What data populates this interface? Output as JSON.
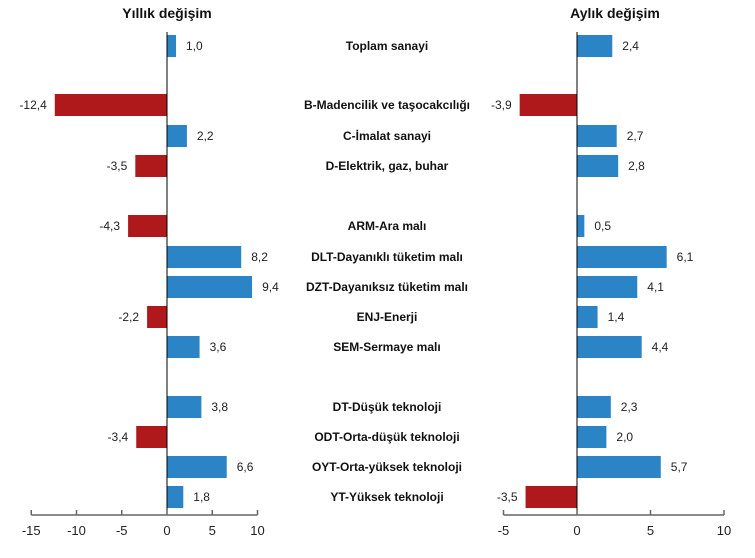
{
  "chart_data": [
    {
      "type": "bar",
      "orientation": "horizontal",
      "title": "Yıllık değişim",
      "xlim": [
        -15,
        10
      ],
      "xticks": [
        "-15",
        "-10",
        "-5",
        "0",
        "5",
        "10"
      ],
      "values": [
        1.0,
        -12.4,
        2.2,
        -3.5,
        -4.3,
        8.2,
        9.4,
        -2.2,
        3.6,
        3.8,
        -3.4,
        6.6,
        1.8
      ],
      "labels": [
        "1,0",
        "-12,4",
        "2,2",
        "-3,5",
        "-4,3",
        "8,2",
        "9,4",
        "-2,2",
        "3,6",
        "3,8",
        "-3,4",
        "6,6",
        "1,8"
      ]
    },
    {
      "type": "bar",
      "orientation": "horizontal",
      "title": "Aylık değişim",
      "xlim": [
        -5,
        10
      ],
      "xticks": [
        "-5",
        "0",
        "5",
        "10"
      ],
      "values": [
        2.4,
        -3.9,
        2.7,
        2.8,
        0.5,
        6.1,
        4.1,
        1.4,
        4.4,
        2.3,
        2.0,
        5.7,
        -3.5
      ],
      "labels": [
        "2,4",
        "-3,9",
        "2,7",
        "2,8",
        "0,5",
        "6,1",
        "4,1",
        "1,4",
        "4,4",
        "2,3",
        "2,0",
        "5,7",
        "-3,5"
      ]
    }
  ],
  "categories": [
    "Toplam sanayi",
    "B-Madencilik ve taşocakcılığı",
    "C-İmalat sanayi",
    "D-Elektrik, gaz, buhar",
    "ARM-Ara malı",
    "DLT-Dayanıklı tüketim malı",
    "DZT-Dayanıksız tüketim malı",
    "ENJ-Enerji",
    "SEM-Sermaye malı",
    "DT-Düşük teknoloji",
    "ODT-Orta-düşük teknoloji",
    "OYT-Orta-yüksek teknoloji",
    "YT-Yüksek teknoloji"
  ],
  "colors": {
    "positive": "#2b84c6",
    "negative": "#b0191b"
  }
}
